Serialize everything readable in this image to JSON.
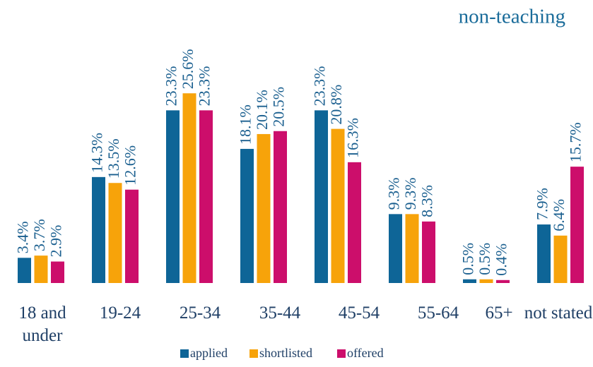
{
  "chart_data": {
    "type": "bar",
    "title": "non-teaching",
    "categories": [
      "18 and under",
      "19-24",
      "25-34",
      "35-44",
      "45-54",
      "55-64",
      "65+",
      "not stated"
    ],
    "series": [
      {
        "name": "applied",
        "color": "#0e6597",
        "values": [
          3.4,
          14.3,
          23.3,
          18.1,
          23.3,
          9.3,
          0.5,
          7.9
        ],
        "value_labels": [
          "3.4%",
          "14.3%",
          "23.3%",
          "18.1%",
          "23.3%",
          "9.3%",
          "0.5%",
          "7.9%"
        ]
      },
      {
        "name": "shortlisted",
        "color": "#f7a30a",
        "values": [
          3.7,
          13.5,
          25.6,
          20.1,
          20.8,
          9.3,
          0.5,
          6.4
        ],
        "value_labels": [
          "3.7%",
          "13.5%",
          "25.6%",
          "20.1%",
          "20.8%",
          "9.3%",
          "0.5%",
          "6.4%"
        ]
      },
      {
        "name": "offered",
        "color": "#cc0e6b",
        "values": [
          2.9,
          12.6,
          23.3,
          20.5,
          16.3,
          8.3,
          0.4,
          15.7
        ],
        "value_labels": [
          "2.9%",
          "12.6%",
          "23.3%",
          "20.5%",
          "16.3%",
          "8.3%",
          "0.4%",
          "15.7%"
        ]
      }
    ]
  }
}
